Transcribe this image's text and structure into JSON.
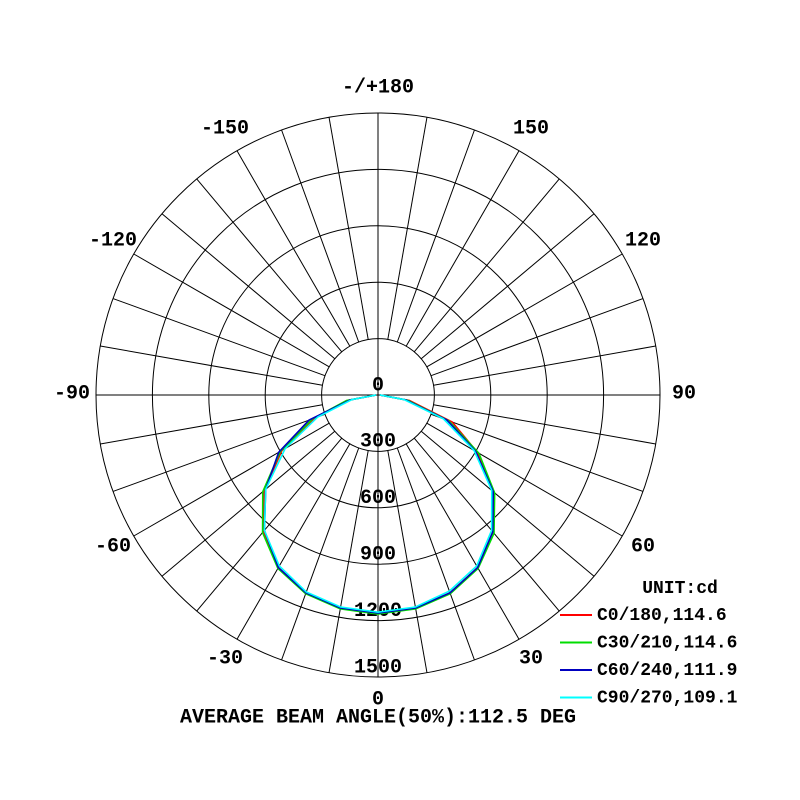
{
  "chart_data": {
    "type": "polar",
    "x": [
      -90,
      -80,
      -70,
      -60,
      -50,
      -40,
      -30,
      -20,
      -10,
      0,
      10,
      20,
      30,
      40,
      50,
      60,
      70,
      80,
      90
    ],
    "series": [
      {
        "name": "C0/180,114.6",
        "color": "#ff0000",
        "values": [
          10,
          160,
          360,
          590,
          790,
          950,
          1060,
          1120,
          1150,
          1160,
          1150,
          1120,
          1060,
          950,
          800,
          610,
          420,
          170,
          10
        ]
      },
      {
        "name": "C30/210,114.6",
        "color": "#00dd00",
        "values": [
          10,
          170,
          370,
          600,
          800,
          955,
          1065,
          1125,
          1155,
          1165,
          1155,
          1125,
          1065,
          960,
          810,
          620,
          400,
          160,
          10
        ]
      },
      {
        "name": "C60/240,111.9",
        "color": "#0000c0",
        "values": [
          10,
          150,
          390,
          610,
          780,
          940,
          1060,
          1120,
          1150,
          1160,
          1150,
          1120,
          1060,
          950,
          800,
          600,
          390,
          150,
          10
        ]
      },
      {
        "name": "C90/270,109.1",
        "color": "#00ffff",
        "values": [
          10,
          140,
          340,
          570,
          780,
          940,
          1050,
          1115,
          1145,
          1155,
          1145,
          1110,
          1050,
          940,
          790,
          590,
          370,
          140,
          10
        ]
      }
    ],
    "rlim": [
      0,
      1500
    ],
    "rticks": [
      0,
      300,
      600,
      900,
      1200,
      1500
    ],
    "thetaticks": [
      0,
      30,
      60,
      90,
      120,
      150,
      {
        "value": 180,
        "label": "-/+180"
      },
      -150,
      -120,
      -90,
      -60,
      -30
    ],
    "legend_title": "UNIT:cd",
    "annotation": "AVERAGE BEAM ANGLE(50%):112.5 DEG",
    "grid": true,
    "legend": "lower right"
  }
}
